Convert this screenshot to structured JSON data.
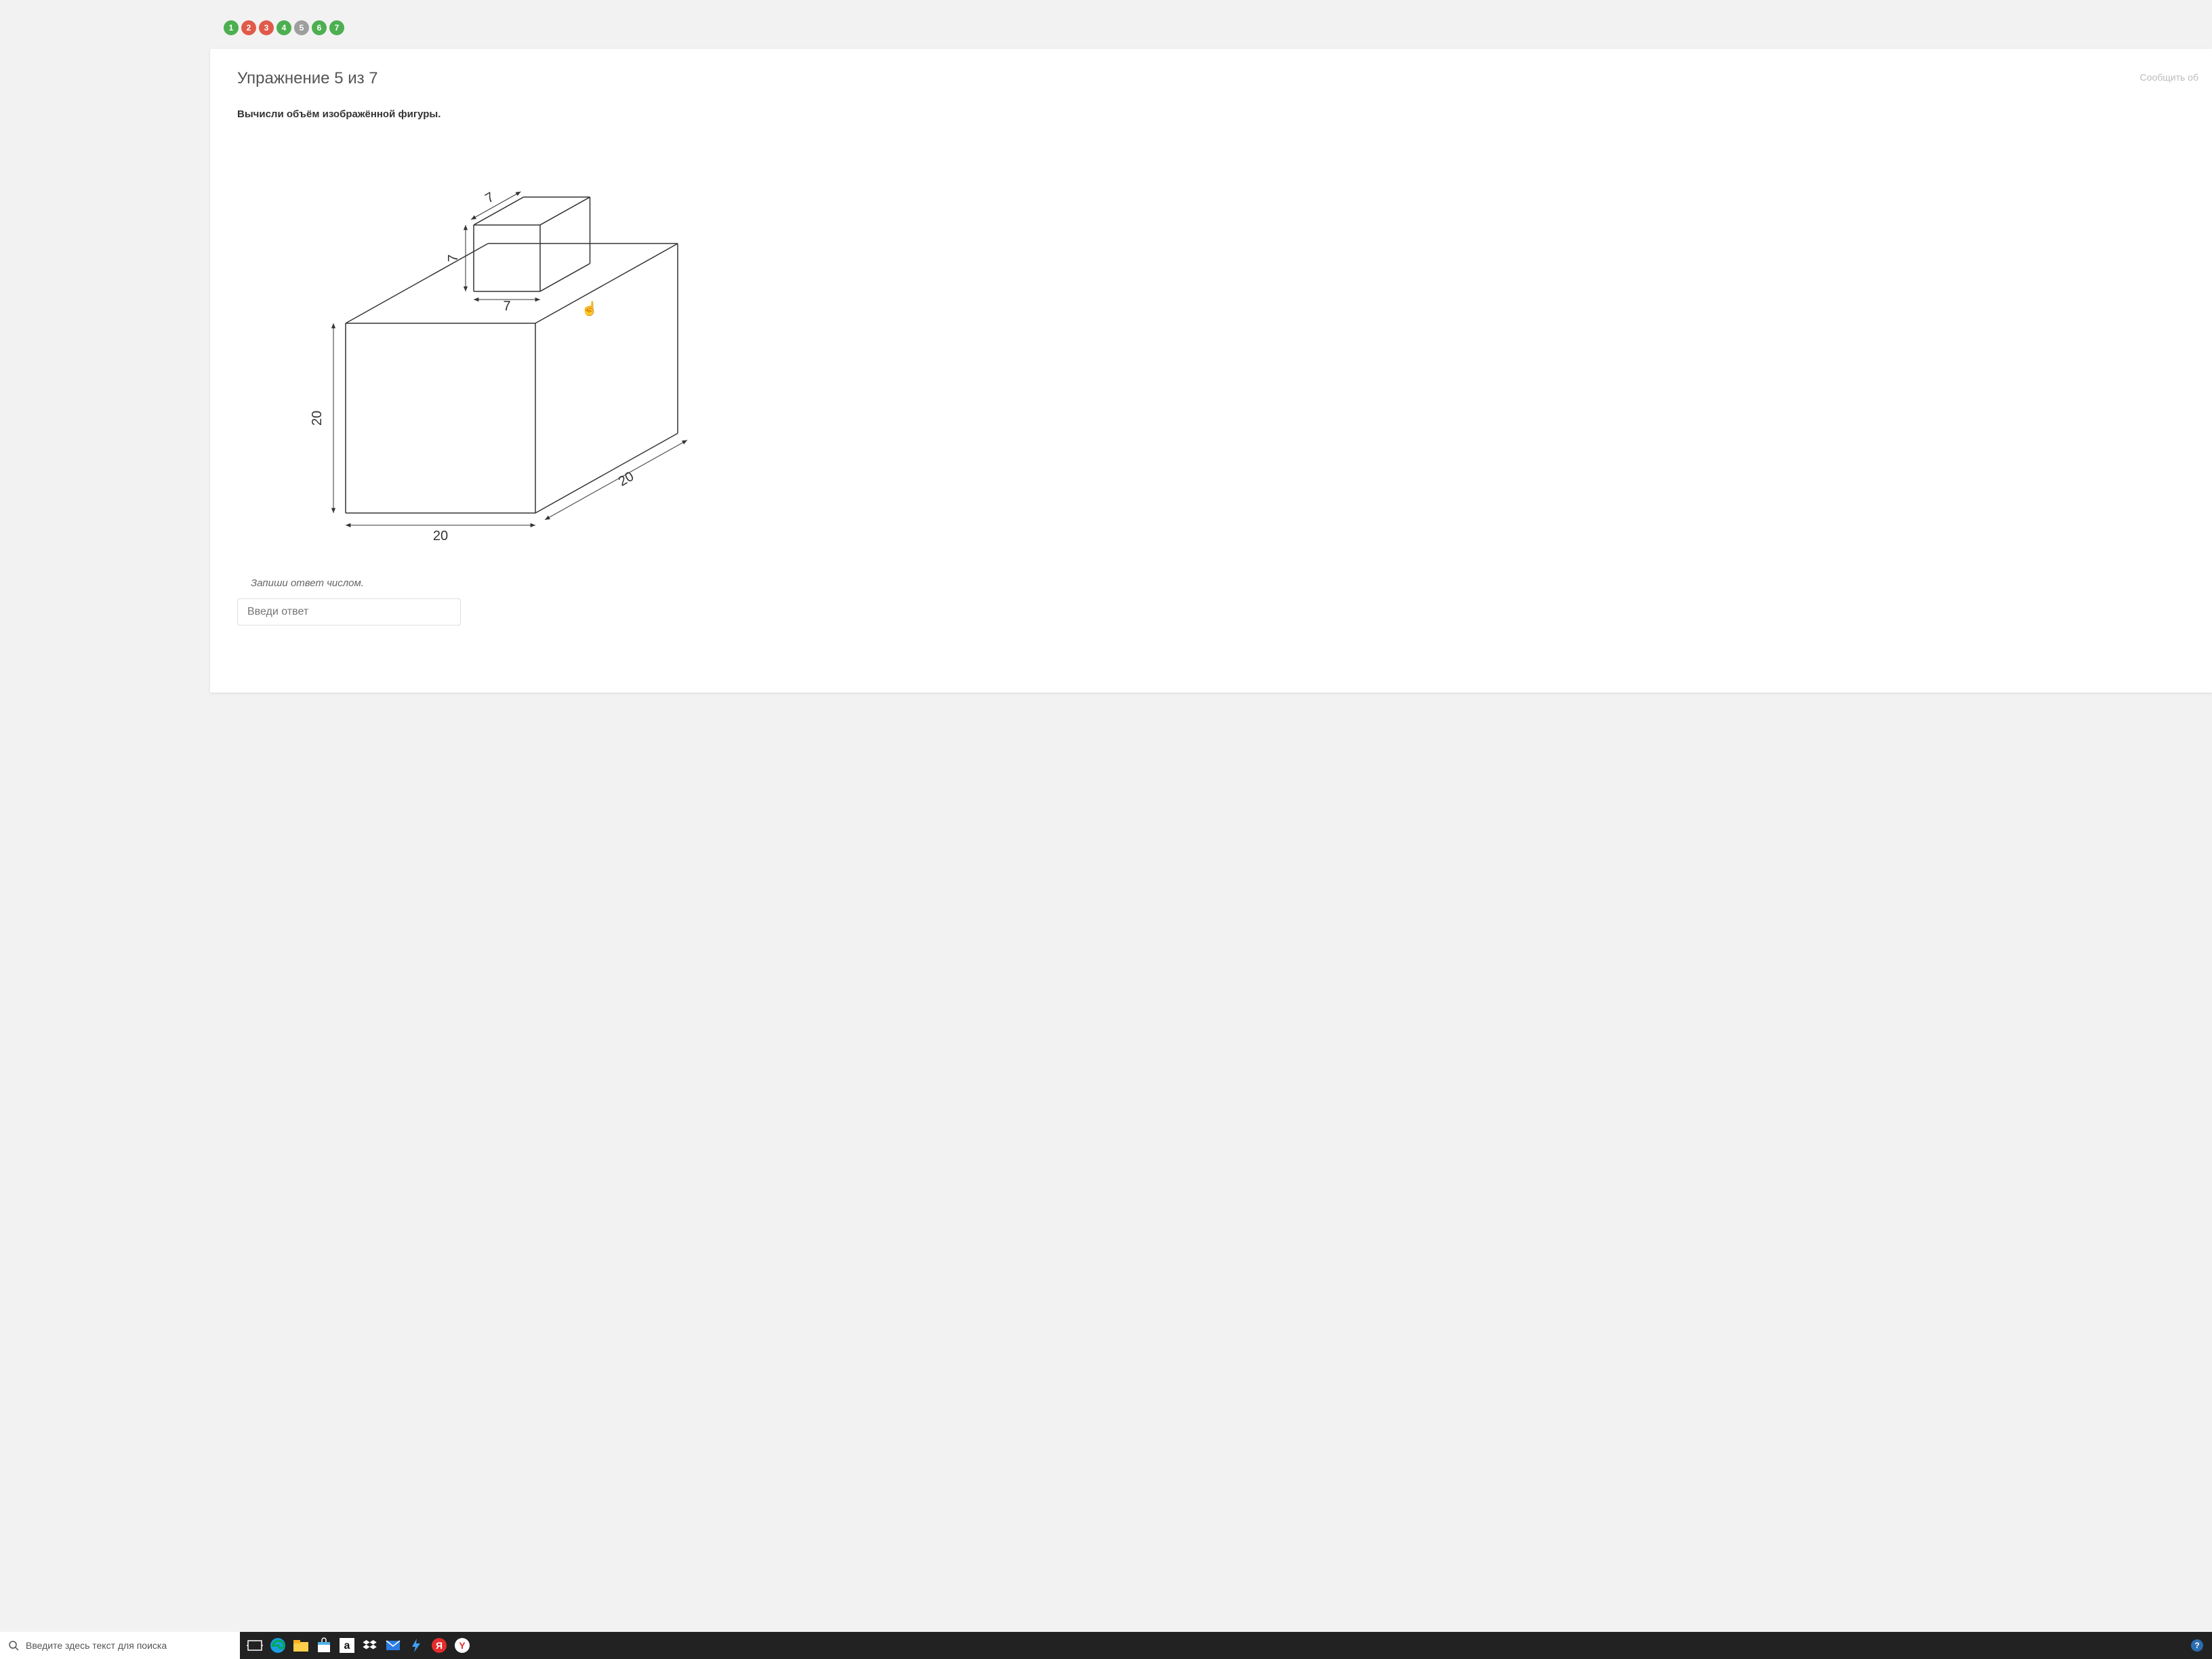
{
  "progress": {
    "dots": [
      {
        "n": "1",
        "color": "#4caf50"
      },
      {
        "n": "2",
        "color": "#e05a4a"
      },
      {
        "n": "3",
        "color": "#e05a4a"
      },
      {
        "n": "4",
        "color": "#4caf50"
      },
      {
        "n": "5",
        "color": "#9e9e9e"
      },
      {
        "n": "6",
        "color": "#4caf50"
      },
      {
        "n": "7",
        "color": "#4caf50"
      }
    ]
  },
  "card": {
    "title": "Упражнение 5 из 7",
    "report": "Сообщить об",
    "task": "Вычисли объём изображённой фигуры.",
    "hint": "Запиши ответ числом.",
    "answer_placeholder": "Введи ответ"
  },
  "figure": {
    "type": "3d-composite-prism",
    "stroke": "#333333",
    "stroke_width": 1.5,
    "font_size": 20,
    "big_cube": {
      "w": 20,
      "d": 20,
      "h": 20
    },
    "small_cube": {
      "w": 7,
      "d": 7,
      "h": 7
    },
    "labels": {
      "big_front_bottom": "20",
      "big_left_height": "20",
      "big_right_depth": "20",
      "small_front_bottom": "7",
      "small_left_height": "7",
      "small_top_depth": "7"
    }
  },
  "taskbar": {
    "search_placeholder": "Введите здесь текст для поиска",
    "bg": "#222222",
    "icons": [
      {
        "name": "task-view-icon"
      },
      {
        "name": "edge-icon"
      },
      {
        "name": "explorer-icon"
      },
      {
        "name": "store-icon"
      },
      {
        "name": "amazon-icon"
      },
      {
        "name": "dropbox-icon"
      },
      {
        "name": "mail-icon"
      },
      {
        "name": "lightning-icon"
      },
      {
        "name": "yandex-red-icon"
      },
      {
        "name": "yandex-browser-icon"
      }
    ]
  }
}
